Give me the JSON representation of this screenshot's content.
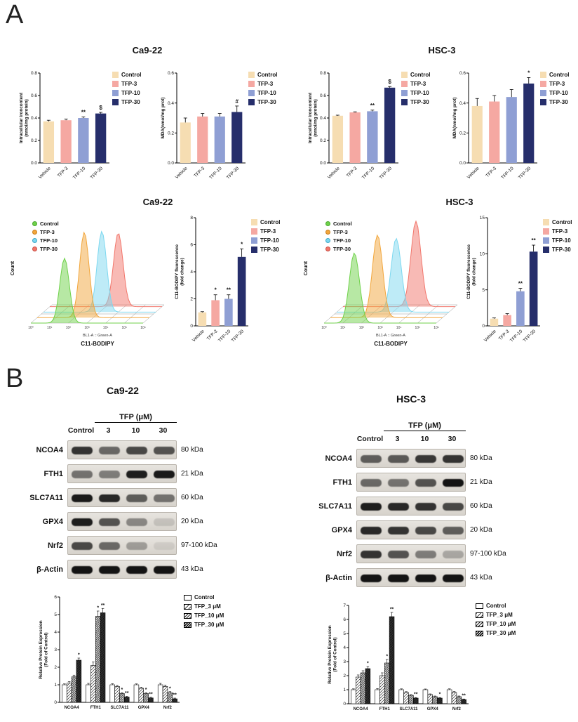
{
  "figure": {
    "panel_a": "A",
    "panel_b": "B"
  },
  "titles": {
    "a1_left": "Ca9-22",
    "a1_right": "HSC-3",
    "a2_left": "Ca9-22",
    "a2_right": "HSC-3"
  },
  "colors": {
    "control": "#f6ddb2",
    "tfp3": "#f5a8a2",
    "tfp10": "#8f9fd4",
    "tfp30": "#262e6b",
    "flow": [
      "#6fd24a",
      "#f2a63b",
      "#7dd8f0",
      "#f2766b"
    ],
    "flow_ring": [
      "#4aa62e",
      "#c97f1d",
      "#3fa8c9",
      "#c94f45"
    ]
  },
  "bar_legend": {
    "labels": [
      "Control",
      "TFP-3",
      "TFP-10",
      "TFP-30"
    ]
  },
  "flow_legend": {
    "labels": [
      "Control",
      "TFP-3",
      "TFP-10",
      "TFP-30"
    ]
  },
  "expr_legend": {
    "labels": [
      "Control",
      "TFP_3 μM",
      "TFP_10 μM",
      "TFP_30 μM"
    ]
  },
  "section_b": {
    "left": {
      "title": "Ca9-22",
      "header_control": "Control",
      "header_tfp": "TFP (μM)",
      "doses": [
        "3",
        "10",
        "30"
      ],
      "blots": [
        {
          "protein": "NCOA4",
          "kda": "80 kDa",
          "bands": [
            0.8,
            0.55,
            0.7,
            0.65
          ]
        },
        {
          "protein": "FTH1",
          "kda": "21 kDa",
          "bands": [
            0.5,
            0.45,
            0.9,
            0.92
          ]
        },
        {
          "protein": "SLC7A11",
          "kda": "60 kDa",
          "bands": [
            0.92,
            0.85,
            0.6,
            0.5
          ]
        },
        {
          "protein": "GPX4",
          "kda": "20 kDa",
          "bands": [
            0.9,
            0.65,
            0.4,
            0.12
          ]
        },
        {
          "protein": "Nrf2",
          "kda": "97-100 kDa",
          "bands": [
            0.7,
            0.55,
            0.3,
            0.08
          ]
        },
        {
          "protein": "β-Actin",
          "kda": "43 kDa",
          "bands": [
            0.95,
            0.95,
            0.95,
            0.95
          ]
        }
      ]
    },
    "right": {
      "title": "HSC-3",
      "header_control": "Control",
      "header_tfp": "TFP (μM)",
      "doses": [
        "3",
        "10",
        "30"
      ],
      "blots": [
        {
          "protein": "NCOA4",
          "kda": "80 kDa",
          "bands": [
            0.6,
            0.62,
            0.78,
            0.8
          ]
        },
        {
          "protein": "FTH1",
          "kda": "21 kDa",
          "bands": [
            0.55,
            0.5,
            0.65,
            0.95
          ]
        },
        {
          "protein": "SLC7A11",
          "kda": "60 kDa",
          "bands": [
            0.9,
            0.85,
            0.8,
            0.7
          ]
        },
        {
          "protein": "GPX4",
          "kda": "20 kDa",
          "bands": [
            0.85,
            0.8,
            0.7,
            0.6
          ]
        },
        {
          "protein": "Nrf2",
          "kda": "97-100 kDa",
          "bands": [
            0.8,
            0.65,
            0.45,
            0.25
          ]
        },
        {
          "protein": "β-Actin",
          "kda": "43 kDa",
          "bands": [
            0.95,
            0.95,
            0.95,
            0.95
          ]
        }
      ]
    }
  },
  "chart_data": [
    {
      "id": "ca922_iron",
      "type": "bar",
      "ylabel": "Intracellular ironcontent\n(nmol/mg protein)",
      "categories": [
        "Vehicle",
        "TFP-3",
        "TFP-10",
        "TFP-30"
      ],
      "values": [
        0.37,
        0.38,
        0.4,
        0.44
      ],
      "errors": [
        0.01,
        0.01,
        0.01,
        0.01
      ],
      "annotations": [
        "",
        "",
        "**",
        "$"
      ],
      "ylim": [
        0,
        0.8
      ],
      "yticks": [
        0,
        0.2,
        0.4,
        0.6,
        0.8
      ],
      "ytick_labels": [
        "0.0",
        "0.2",
        "0.4",
        "0.6",
        "0.8"
      ],
      "legend": [
        "Control",
        "TFP-3",
        "TFP-10",
        "TFP-30"
      ]
    },
    {
      "id": "ca922_mda",
      "type": "bar",
      "ylabel": "MDA(nmol/mg prot)",
      "categories": [
        "Vehicle",
        "TFP-3",
        "TFP-10",
        "TFP-30"
      ],
      "values": [
        0.27,
        0.31,
        0.31,
        0.34
      ],
      "errors": [
        0.03,
        0.02,
        0.02,
        0.04
      ],
      "annotations": [
        "",
        "",
        "",
        "#"
      ],
      "ylim": [
        0,
        0.6
      ],
      "yticks": [
        0,
        0.2,
        0.4,
        0.6
      ],
      "ytick_labels": [
        "0.0",
        "0.2",
        "0.4",
        "0.6"
      ],
      "legend": [
        "Control",
        "TFP-3",
        "TFP-10",
        "TFP-30"
      ]
    },
    {
      "id": "hsc3_iron",
      "type": "bar",
      "ylabel": "Intracellular ironcontent\n(nmol/mg protein)",
      "categories": [
        "Vehicle",
        "TFP-3",
        "TFP-10",
        "TFP-30"
      ],
      "values": [
        0.42,
        0.45,
        0.46,
        0.67
      ],
      "errors": [
        0.005,
        0.005,
        0.01,
        0.01
      ],
      "annotations": [
        "",
        "",
        "**",
        "$"
      ],
      "ylim": [
        0,
        0.8
      ],
      "yticks": [
        0,
        0.2,
        0.4,
        0.6,
        0.8
      ],
      "ytick_labels": [
        "0.0",
        "0.2",
        "0.4",
        "0.6",
        "0.8"
      ],
      "legend": [
        "Control",
        "TFP-3",
        "TFP-10",
        "TFP-30"
      ]
    },
    {
      "id": "hsc3_mda",
      "type": "bar",
      "ylabel": "MDA(nmol/mg prot)",
      "categories": [
        "Vehicle",
        "TFP-3",
        "TFP-10",
        "TFP-30"
      ],
      "values": [
        0.38,
        0.41,
        0.44,
        0.53
      ],
      "errors": [
        0.05,
        0.04,
        0.05,
        0.04
      ],
      "annotations": [
        "",
        "",
        "",
        "*"
      ],
      "ylim": [
        0,
        0.6
      ],
      "yticks": [
        0,
        0.2,
        0.4,
        0.6
      ],
      "ytick_labels": [
        "0.0",
        "0.2",
        "0.4",
        "0.6"
      ],
      "legend": [
        "Control",
        "TFP-3",
        "TFP-10",
        "TFP-30"
      ]
    },
    {
      "id": "ca922_flow",
      "type": "flow",
      "series": [
        "Control",
        "TFP-3",
        "TFP-10",
        "TFP-30"
      ],
      "peaks": [
        0.3,
        0.42,
        0.52,
        0.61
      ],
      "heights": [
        0.72,
        0.95,
        0.9,
        0.82
      ],
      "sigma": 0.042,
      "xticks": [
        "10⁰",
        "10¹",
        "10²",
        "10³",
        "10⁴",
        "10⁵",
        "10⁶"
      ],
      "axis_label": "BL1-A :: Green-A",
      "xlabel": "C11-BODIPY",
      "ylabel": "Count"
    },
    {
      "id": "ca922_c11",
      "type": "bar",
      "ylabel": "C11-BODIPY fluorescence\n(fold change)",
      "categories": [
        "Vehicle",
        "TFP-3",
        "TFP-10",
        "TFP-30"
      ],
      "values": [
        1.0,
        1.9,
        2.0,
        5.1
      ],
      "errors": [
        0.05,
        0.4,
        0.3,
        0.6
      ],
      "annotations": [
        "",
        "*",
        "**",
        "*"
      ],
      "ylim": [
        0,
        8
      ],
      "yticks": [
        0,
        2,
        4,
        6,
        8
      ],
      "ytick_labels": [
        "0",
        "2",
        "4",
        "6",
        "8"
      ],
      "legend": [
        "Control",
        "TFP-3",
        "TFP-10",
        "TFP-30"
      ]
    },
    {
      "id": "hsc3_flow",
      "type": "flow",
      "series": [
        "Control",
        "TFP-3",
        "TFP-10",
        "TFP-30"
      ],
      "peaks": [
        0.27,
        0.42,
        0.53,
        0.65
      ],
      "heights": [
        0.78,
        0.92,
        0.82,
        0.95
      ],
      "sigma": 0.045,
      "xticks": [
        "10⁰",
        "10¹",
        "10²",
        "10³",
        "10⁴",
        "10⁵",
        "10⁶"
      ],
      "axis_label": "BL1-A :: Green-A",
      "xlabel": "C11-BODIPY",
      "ylabel": "Count"
    },
    {
      "id": "hsc3_c11",
      "type": "bar",
      "ylabel": "C11-BODIPY fluorescence\n(fold change)",
      "categories": [
        "Vehicle",
        "TFP-3",
        "TFP-10",
        "TFP-30"
      ],
      "values": [
        1.0,
        1.5,
        4.8,
        10.3
      ],
      "errors": [
        0.1,
        0.2,
        0.4,
        0.9
      ],
      "annotations": [
        "",
        "",
        "**",
        "**"
      ],
      "ylim": [
        0,
        15
      ],
      "yticks": [
        0,
        5,
        10,
        15
      ],
      "ytick_labels": [
        "0",
        "5",
        "10",
        "15"
      ],
      "legend": [
        "Control",
        "TFP-3",
        "TFP-10",
        "TFP-30"
      ]
    },
    {
      "id": "ca922_expression",
      "type": "grouped_bar",
      "ylabel": "Relative Protein Expression\n(Fold of Control)",
      "categories": [
        "NCOA4",
        "FTH1",
        "SLC7A11",
        "GPX4",
        "Nrf2"
      ],
      "series": [
        {
          "name": "Control",
          "values": [
            1.0,
            1.0,
            1.0,
            1.0,
            1.0
          ],
          "errors": [
            0.05,
            0.08,
            0.06,
            0.05,
            0.08
          ],
          "annotations": [
            "",
            "",
            "",
            "",
            ""
          ]
        },
        {
          "name": "TFP_3 μM",
          "values": [
            1.1,
            2.1,
            0.9,
            0.8,
            0.9
          ],
          "errors": [
            0.08,
            0.2,
            0.06,
            0.06,
            0.08
          ],
          "annotations": [
            "",
            "",
            "",
            "",
            ""
          ]
        },
        {
          "name": "TFP_10 μM",
          "values": [
            1.45,
            4.9,
            0.5,
            0.5,
            0.55
          ],
          "errors": [
            0.1,
            0.3,
            0.05,
            0.05,
            0.06
          ],
          "annotations": [
            "",
            "*",
            "*",
            "*",
            "*"
          ]
        },
        {
          "name": "TFP_30 μM",
          "values": [
            2.4,
            5.1,
            0.3,
            0.25,
            0.2
          ],
          "errors": [
            0.12,
            0.25,
            0.04,
            0.04,
            0.04
          ],
          "annotations": [
            "*",
            "**",
            "**",
            "**",
            "**"
          ]
        }
      ],
      "ylim": [
        0,
        6
      ],
      "yticks": [
        0,
        1,
        2,
        3,
        4,
        5,
        6
      ],
      "ytick_labels": [
        "0",
        "1",
        "2",
        "3",
        "4",
        "5",
        "6"
      ],
      "legend": [
        "Control",
        "TFP_3 μM",
        "TFP_10 μM",
        "TFP_30 μM"
      ]
    },
    {
      "id": "hsc3_expression",
      "type": "grouped_bar",
      "ylabel": "Relative Protein Expression\n(Fold of Control)",
      "categories": [
        "NCOA4",
        "FTH1",
        "SLC7A11",
        "GPX4",
        "Nrf2"
      ],
      "series": [
        {
          "name": "Control",
          "values": [
            1.0,
            1.0,
            1.0,
            1.0,
            1.0
          ],
          "errors": [
            0.06,
            0.08,
            0.06,
            0.05,
            0.06
          ],
          "annotations": [
            "",
            "",
            "",
            "",
            ""
          ]
        },
        {
          "name": "TFP_3 μM",
          "values": [
            1.9,
            2.0,
            0.8,
            0.65,
            0.8
          ],
          "errors": [
            0.15,
            0.2,
            0.06,
            0.05,
            0.07
          ],
          "annotations": [
            "",
            "",
            "",
            "",
            ""
          ]
        },
        {
          "name": "TFP_10 μM",
          "values": [
            2.2,
            2.9,
            0.6,
            0.5,
            0.5
          ],
          "errors": [
            0.15,
            0.25,
            0.05,
            0.05,
            0.05
          ],
          "annotations": [
            "",
            "*",
            "",
            "",
            ""
          ]
        },
        {
          "name": "TFP_30 μM",
          "values": [
            2.5,
            6.2,
            0.4,
            0.4,
            0.3
          ],
          "errors": [
            0.15,
            0.3,
            0.04,
            0.04,
            0.04
          ],
          "annotations": [
            "*",
            "**",
            "**",
            "*",
            "**"
          ]
        }
      ],
      "ylim": [
        0,
        7
      ],
      "yticks": [
        0,
        1,
        2,
        3,
        4,
        5,
        6,
        7
      ],
      "ytick_labels": [
        "0",
        "1",
        "2",
        "3",
        "4",
        "5",
        "6",
        "7"
      ],
      "legend": [
        "Control",
        "TFP_3 μM",
        "TFP_10 μM",
        "TFP_30 μM"
      ]
    }
  ]
}
